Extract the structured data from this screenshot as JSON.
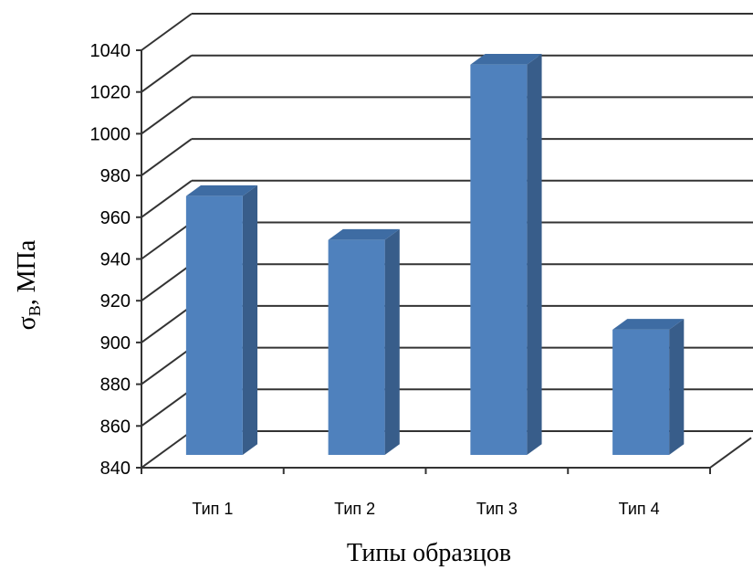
{
  "chart_data": {
    "type": "bar",
    "style": "3d-column",
    "categories": [
      "Тип 1",
      "Тип 2",
      "Тип 3",
      "Тип 4"
    ],
    "values": [
      971,
      950,
      1034,
      907
    ],
    "xlabel": "Типы образцов",
    "ylabel": "σB, МПа",
    "ylabel_parts": {
      "symbol": "σ",
      "subscript": "B",
      "rest": ", МПа"
    },
    "ylim": [
      840,
      1040
    ],
    "yticks": [
      840,
      860,
      880,
      900,
      920,
      940,
      960,
      980,
      1000,
      1020,
      1040
    ],
    "grid": true,
    "legend": "none",
    "colors": {
      "front": "#4f81bd",
      "side": "#385d8a",
      "top": "#3e6ca3",
      "grid": "#333333"
    }
  }
}
